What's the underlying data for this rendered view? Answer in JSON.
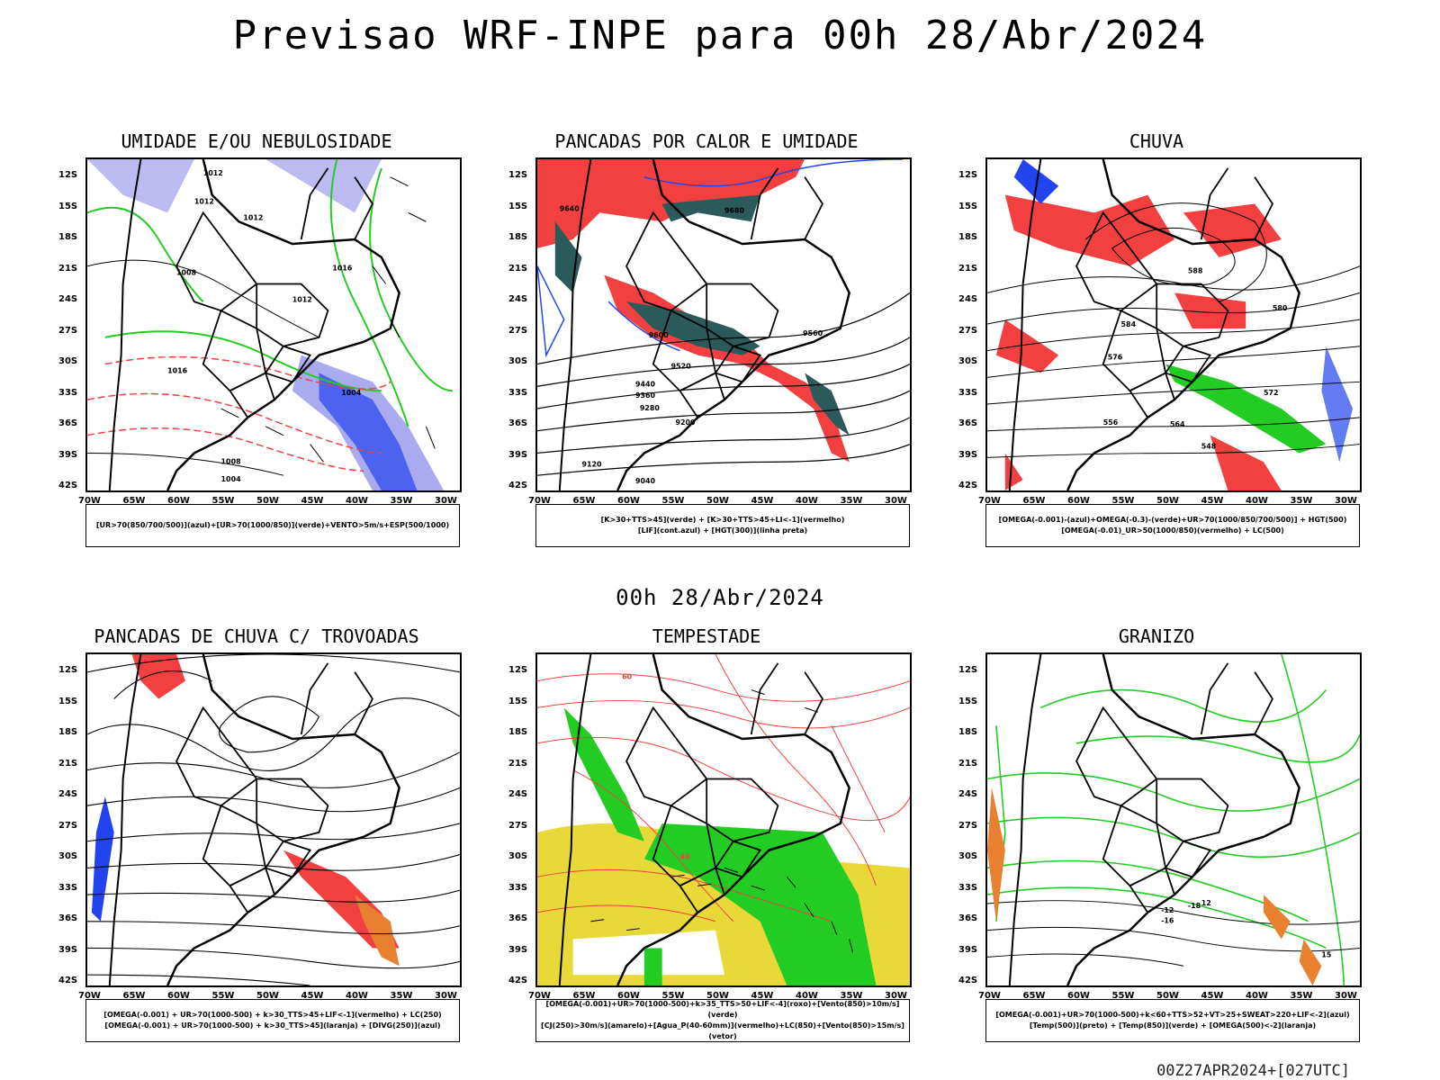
{
  "main_title": "Previsao WRF-INPE  para 00h 28/Abr/2024",
  "mid_title": "00h 28/Abr/2024",
  "footer": "00Z27APR2024+[027UTC]",
  "lat_labels": [
    "12S",
    "15S",
    "18S",
    "21S",
    "24S",
    "27S",
    "30S",
    "33S",
    "36S",
    "39S",
    "42S"
  ],
  "lon_labels": [
    "70W",
    "65W",
    "60W",
    "55W",
    "50W",
    "45W",
    "40W",
    "35W",
    "30W"
  ],
  "colors": {
    "red": "#f24040",
    "green": "#22cc22",
    "blue": "#2244ee",
    "lavender": "#aaaaee",
    "teal": "#2a5a5a",
    "yellow": "#e8d838",
    "orange": "#e88030"
  },
  "panels": [
    {
      "title": "UMIDADE E/OU NEBULOSIDADE",
      "legend": [
        "[UR>70(850/700/500)](azul)+[UR>70(1000/850)](verde)+VENTO>5m/s+ESP(500/1000)"
      ],
      "contour_labels": [
        "1012",
        "1012",
        "1012",
        "1008",
        "1016",
        "1012",
        "1016",
        "1004",
        "1008",
        "1004"
      ]
    },
    {
      "title": "PANCADAS POR CALOR E UMIDADE",
      "legend": [
        "[K>30+TTS>45](verde) + [K>30+TTS>45+LI<-1](vermelho)",
        "[LIF](cont.azul) + [HGT(300)](linha preta)"
      ],
      "contour_labels": [
        "9680",
        "9640",
        "9600",
        "9560",
        "9520",
        "9440",
        "9360",
        "9280",
        "9200",
        "9120",
        "9040"
      ]
    },
    {
      "title": "CHUVA",
      "legend": [
        "[OMEGA(-0.001)-(azul)+OMEGA(-0.3)-(verde)+UR>70(1000/850/700/500)] + HGT(500)",
        "[OMEGA(-0.01)_UR>50(1000/850)(vermelho) + LC(500)"
      ],
      "contour_labels": [
        "588",
        "584",
        "580",
        "576",
        "572",
        "564",
        "556",
        "548"
      ]
    },
    {
      "title": "PANCADAS DE CHUVA C/ TROVOADAS",
      "legend": [
        "[OMEGA(-0.001) + UR>70(1000-500) + k>30_TTS>45+LIF<-1](vermelho) + LC(250)",
        "[OMEGA(-0.001) + UR>70(1000-500) + k>30_TTS>45](laranja) + [DIVG(250)](azul)"
      ],
      "contour_labels": []
    },
    {
      "title": "TEMPESTADE",
      "legend": [
        "[OMEGA(-0.001)+UR>70(1000-500)+k>35_TTS>50+LIF<-4](roxo)+[Vento(850)>10m/s](verde)",
        "[CJ(250)>30m/s](amarelo)+[Agua_P(40-60mm)](vermelho)+LC(850)+[Vento(850)>15m/s](vetor)"
      ],
      "contour_labels": [
        "60",
        "40"
      ]
    },
    {
      "title": "GRANIZO",
      "legend": [
        "[OMEGA(-0.001)+UR>70(1000-500)+k<60+TTS>52+VT>25+SWEAT>220+LIF<-2](azul)",
        "[Temp(500)](preto) + [Temp(850)](verde) + [OMEGA(500)<-2](laranja)"
      ],
      "contour_labels": [
        "-12",
        "-16",
        "-18",
        "15",
        "12"
      ]
    }
  ]
}
